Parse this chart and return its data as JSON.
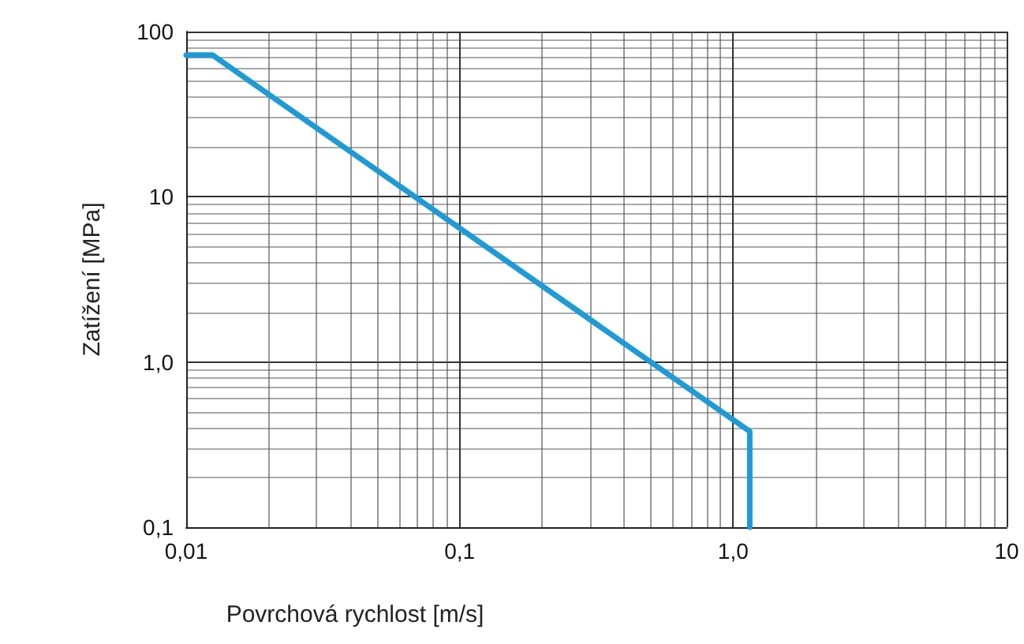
{
  "chart_data": {
    "type": "line",
    "xlabel": "Povrchová rychlost [m/s]",
    "ylabel": "Zatížení [MPa]",
    "x": [
      0.01,
      0.0125,
      1.15,
      1.15
    ],
    "series": [
      {
        "color": "#1e9ad6",
        "values": [
          72,
          72,
          0.38,
          0.1
        ]
      }
    ],
    "log": "xy",
    "xlim": [
      0.01,
      10
    ],
    "ylim": [
      0.1,
      100
    ],
    "xticks": [
      {
        "value": 0.01,
        "label": "0,01"
      },
      {
        "value": 0.1,
        "label": "0,1"
      },
      {
        "value": 1,
        "label": "1,0"
      },
      10
    ],
    "yticks": [
      {
        "value": 0.1,
        "label": "0,1"
      },
      {
        "value": 1,
        "label": "1,0"
      },
      10,
      100
    ],
    "grid": true,
    "marker": "none",
    "line_style": "solid"
  }
}
